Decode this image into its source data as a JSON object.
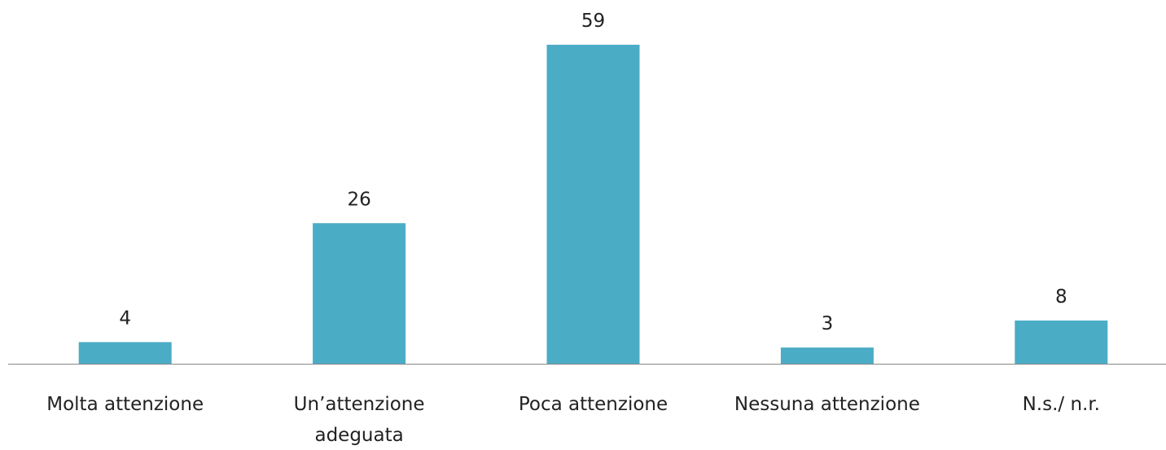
{
  "chart_data": {
    "type": "bar",
    "categories": [
      "Molta attenzione",
      "Un’attenzione adeguata",
      "Poca attenzione",
      "Nessuna attenzione",
      "N.s./ n.r."
    ],
    "values": [
      4,
      26,
      59,
      3,
      8
    ],
    "color": "#4bacc6"
  }
}
